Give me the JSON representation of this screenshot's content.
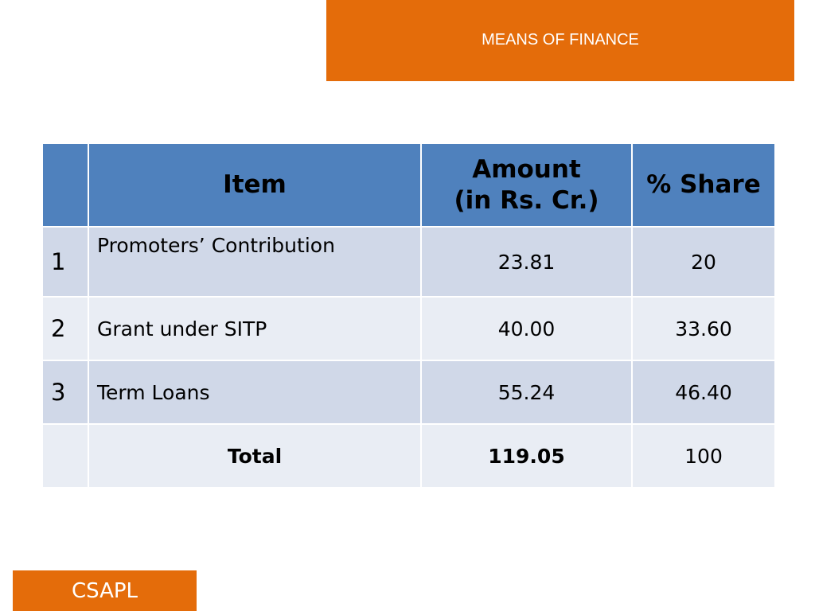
{
  "slide": {
    "title": "MEANS OF FINANCE",
    "footer": "CSAPL",
    "colors": {
      "accent": "#e46c0a",
      "header": "#4f81bd",
      "row_dark": "#d0d8e8",
      "row_light": "#e9edf4"
    }
  },
  "table": {
    "headers": {
      "num": "",
      "item": "Item",
      "amount_line1": "Amount",
      "amount_line2": "(in Rs. Cr.)",
      "share": "% Share"
    },
    "rows": [
      {
        "num": "1",
        "item": "Promoters’ Contribution",
        "amount": "23.81",
        "share": "20"
      },
      {
        "num": "2",
        "item": "Grant under SITP",
        "amount": "40.00",
        "share": "33.60"
      },
      {
        "num": "3",
        "item": "Term Loans",
        "amount": "55.24",
        "share": "46.40"
      },
      {
        "num": "",
        "item": "Total",
        "amount": "119.05",
        "share": "100"
      }
    ]
  }
}
